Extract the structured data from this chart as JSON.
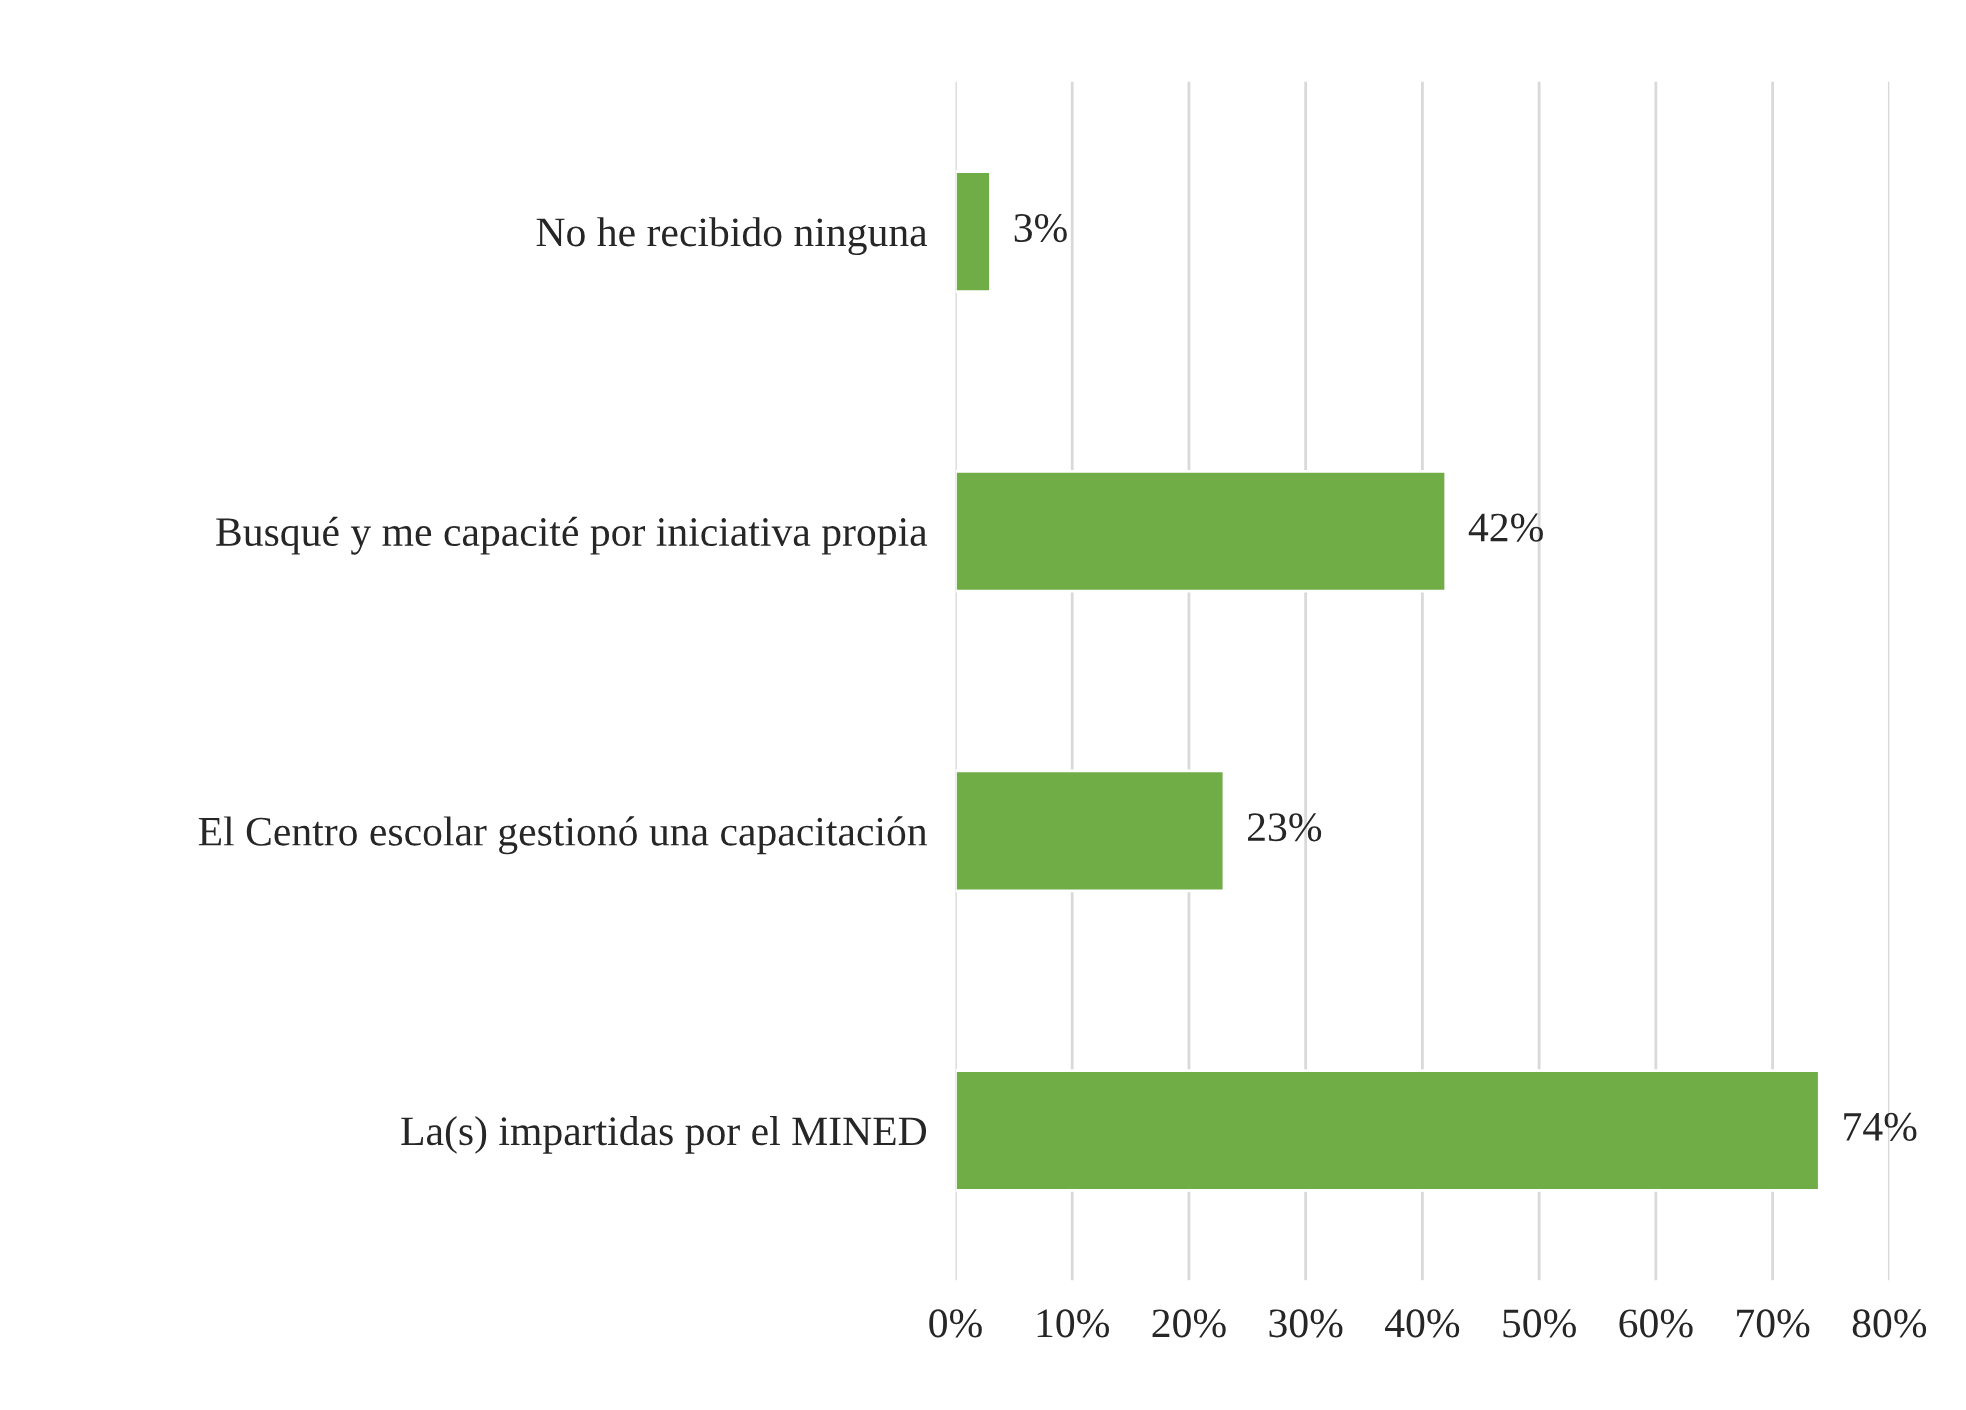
{
  "chart_data": {
    "type": "bar",
    "orientation": "horizontal",
    "categories": [
      "No he recibido ninguna",
      "Busqué y me capacité por iniciativa propia",
      "El Centro escolar gestionó una capacitación",
      "La(s) impartidas por el MINED"
    ],
    "values": [
      3,
      42,
      23,
      74
    ],
    "color": "#70ad47",
    "value_labels": [
      "3%",
      "42%",
      "23%",
      "74%"
    ],
    "xlim": [
      0,
      80
    ],
    "xticks": [
      {
        "value": 0,
        "label": "0%"
      },
      {
        "value": 10,
        "label": "10%"
      },
      {
        "value": 20,
        "label": "20%"
      },
      {
        "value": 30,
        "label": "30%"
      },
      {
        "value": 40,
        "label": "40%"
      },
      {
        "value": 50,
        "label": "50%"
      },
      {
        "value": 60,
        "label": "60%"
      },
      {
        "value": 70,
        "label": "70%"
      },
      {
        "value": 80,
        "label": "80%"
      }
    ],
    "grid": "x",
    "legend": false
  }
}
